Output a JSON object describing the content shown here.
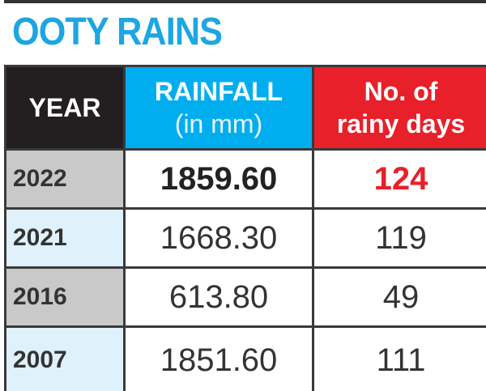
{
  "header": {
    "title": "OOTY RAINS"
  },
  "table": {
    "columns": [
      {
        "label": "YEAR"
      },
      {
        "label": "RAINFALL",
        "sub": "(in mm)"
      },
      {
        "label": "No. of",
        "sub": "rainy days"
      }
    ],
    "rows": [
      [
        "2022",
        "1859.60",
        "124"
      ],
      [
        "2021",
        "1668.30",
        "119"
      ],
      [
        "2016",
        "613.80",
        "49"
      ],
      [
        "2007",
        "1851.60",
        "111"
      ]
    ]
  }
}
